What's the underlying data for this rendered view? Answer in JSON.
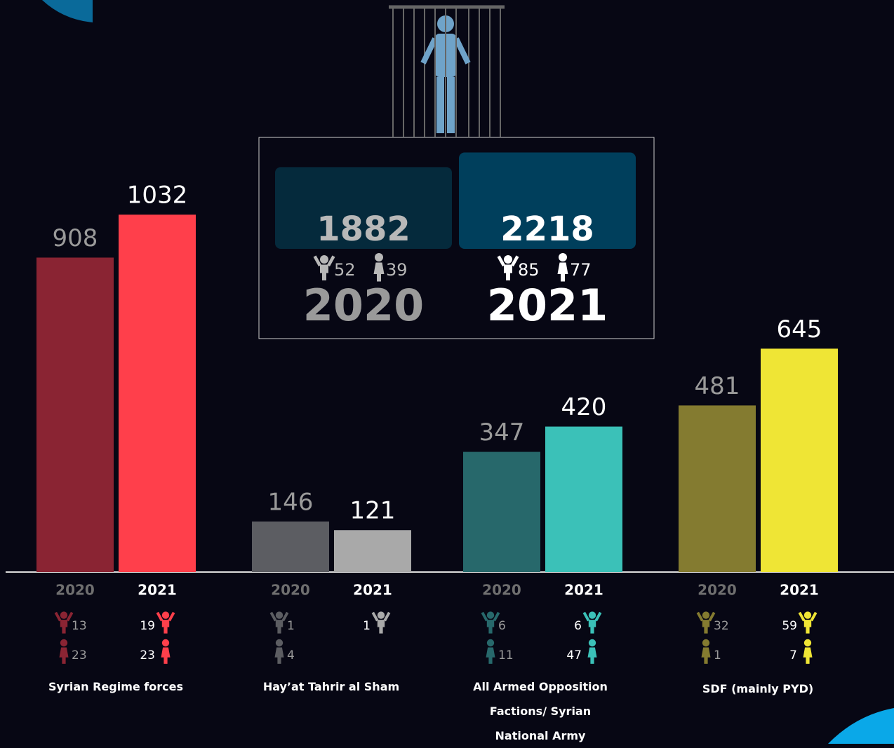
{
  "chart_data": {
    "type": "bar",
    "categories": [
      "Syrian Regime forces",
      "Hay’at Tahrir al Sham",
      "All Armed Opposition Factions/ Syrian National Army",
      "SDF (mainly PYD)"
    ],
    "series": [
      {
        "name": "2020",
        "colors": [
          "#8a2433",
          "#5c5d62",
          "#27686b",
          "#847b30"
        ],
        "values": [
          908,
          146,
          347,
          481
        ],
        "children": [
          13,
          1,
          6,
          32
        ],
        "women": [
          23,
          4,
          11,
          1
        ]
      },
      {
        "name": "2021",
        "colors": [
          "#ff3f4b",
          "#a9a9a9",
          "#3bc1b8",
          "#efe535"
        ],
        "values": [
          1032,
          121,
          420,
          645
        ],
        "children": [
          19,
          1,
          6,
          59
        ],
        "women": [
          23,
          null,
          47,
          7
        ]
      }
    ],
    "totals": [
      {
        "value": 1882,
        "children": 52,
        "women": 39,
        "color": "#052a3c"
      },
      {
        "value": 2218,
        "children": 85,
        "women": 77,
        "color": "#003f5c"
      }
    ]
  }
}
